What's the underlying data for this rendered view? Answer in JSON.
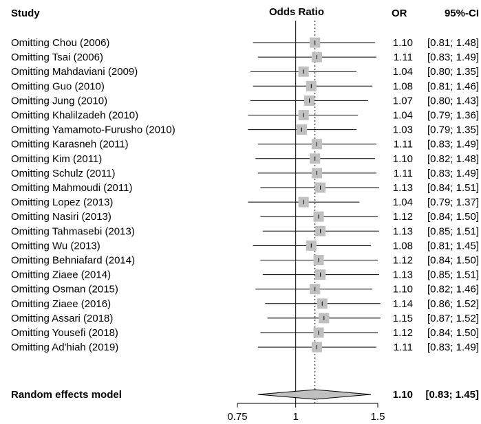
{
  "chart_data": {
    "type": "forest",
    "headers": {
      "study": "Study",
      "plot": "Odds Ratio",
      "or": "OR",
      "ci": "95%-CI"
    },
    "x_scale": "log",
    "x_range": [
      0.75,
      1.5
    ],
    "x_ticks": [
      "0.75",
      "1",
      "1.5"
    ],
    "reference_line": 1,
    "pooled_line": 1.1,
    "studies": [
      {
        "label": "Omitting Chou (2006)",
        "or": 1.1,
        "lower": 0.81,
        "upper": 1.48,
        "or_text": "1.10",
        "ci_text": "[0.81; 1.48]"
      },
      {
        "label": "Omitting Tsai (2006)",
        "or": 1.11,
        "lower": 0.83,
        "upper": 1.49,
        "or_text": "1.11",
        "ci_text": "[0.83; 1.49]"
      },
      {
        "label": "Omitting Mahdaviani (2009)",
        "or": 1.04,
        "lower": 0.8,
        "upper": 1.35,
        "or_text": "1.04",
        "ci_text": "[0.80; 1.35]"
      },
      {
        "label": "Omitting Guo (2010)",
        "or": 1.08,
        "lower": 0.81,
        "upper": 1.46,
        "or_text": "1.08",
        "ci_text": "[0.81; 1.46]"
      },
      {
        "label": "Omitting Jung (2010)",
        "or": 1.07,
        "lower": 0.8,
        "upper": 1.43,
        "or_text": "1.07",
        "ci_text": "[0.80; 1.43]"
      },
      {
        "label": "Omitting Khalilzadeh (2010)",
        "or": 1.04,
        "lower": 0.79,
        "upper": 1.36,
        "or_text": "1.04",
        "ci_text": "[0.79; 1.36]"
      },
      {
        "label": "Omitting Yamamoto-Furusho (2010)",
        "or": 1.03,
        "lower": 0.79,
        "upper": 1.35,
        "or_text": "1.03",
        "ci_text": "[0.79; 1.35]"
      },
      {
        "label": "Omitting Karasneh (2011)",
        "or": 1.11,
        "lower": 0.83,
        "upper": 1.49,
        "or_text": "1.11",
        "ci_text": "[0.83; 1.49]"
      },
      {
        "label": "Omitting Kim (2011)",
        "or": 1.1,
        "lower": 0.82,
        "upper": 1.48,
        "or_text": "1.10",
        "ci_text": "[0.82; 1.48]"
      },
      {
        "label": "Omitting Schulz (2011)",
        "or": 1.11,
        "lower": 0.83,
        "upper": 1.49,
        "or_text": "1.11",
        "ci_text": "[0.83; 1.49]"
      },
      {
        "label": "Omitting Mahmoudi (2011)",
        "or": 1.13,
        "lower": 0.84,
        "upper": 1.51,
        "or_text": "1.13",
        "ci_text": "[0.84; 1.51]"
      },
      {
        "label": "Omitting Lopez (2013)",
        "or": 1.04,
        "lower": 0.79,
        "upper": 1.37,
        "or_text": "1.04",
        "ci_text": "[0.79; 1.37]"
      },
      {
        "label": "Omitting Nasiri  (2013)",
        "or": 1.12,
        "lower": 0.84,
        "upper": 1.5,
        "or_text": "1.12",
        "ci_text": "[0.84; 1.50]"
      },
      {
        "label": "Omitting Tahmasebi (2013)",
        "or": 1.13,
        "lower": 0.85,
        "upper": 1.51,
        "or_text": "1.13",
        "ci_text": "[0.85; 1.51]"
      },
      {
        "label": "Omitting Wu (2013)",
        "or": 1.08,
        "lower": 0.81,
        "upper": 1.45,
        "or_text": "1.08",
        "ci_text": "[0.81; 1.45]"
      },
      {
        "label": "Omitting Behniafard (2014)",
        "or": 1.12,
        "lower": 0.84,
        "upper": 1.5,
        "or_text": "1.12",
        "ci_text": "[0.84; 1.50]"
      },
      {
        "label": "Omitting Ziaee (2014)",
        "or": 1.13,
        "lower": 0.85,
        "upper": 1.51,
        "or_text": "1.13",
        "ci_text": "[0.85; 1.51]"
      },
      {
        "label": "Omitting Osman (2015)",
        "or": 1.1,
        "lower": 0.82,
        "upper": 1.46,
        "or_text": "1.10",
        "ci_text": "[0.82; 1.46]"
      },
      {
        "label": "Omitting Ziaee (2016)",
        "or": 1.14,
        "lower": 0.86,
        "upper": 1.52,
        "or_text": "1.14",
        "ci_text": "[0.86; 1.52]"
      },
      {
        "label": "Omitting Assari (2018)",
        "or": 1.15,
        "lower": 0.87,
        "upper": 1.52,
        "or_text": "1.15",
        "ci_text": "[0.87; 1.52]"
      },
      {
        "label": "Omitting Yousefi (2018)",
        "or": 1.12,
        "lower": 0.84,
        "upper": 1.5,
        "or_text": "1.12",
        "ci_text": "[0.84; 1.50]"
      },
      {
        "label": "Omitting Ad'hiah (2019)",
        "or": 1.11,
        "lower": 0.83,
        "upper": 1.49,
        "or_text": "1.11",
        "ci_text": "[0.83; 1.49]"
      }
    ],
    "summary": {
      "label": "Random effects model",
      "or": 1.1,
      "lower": 0.83,
      "upper": 1.45,
      "or_text": "1.10",
      "ci_text": "[0.83; 1.45]"
    },
    "colors": {
      "box": "#c0c0c0",
      "diamond": "#c0c0c0",
      "line": "#000000"
    }
  }
}
